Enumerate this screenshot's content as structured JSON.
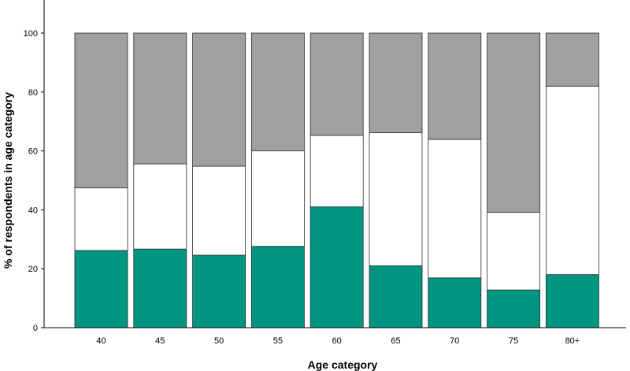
{
  "chart_data": {
    "type": "bar",
    "stacked": true,
    "xlabel": "Age category",
    "ylabel": "% of respondents in age category",
    "ylim": [
      0,
      100
    ],
    "yticks": [
      0,
      20,
      40,
      60,
      80,
      100
    ],
    "grid": false,
    "legend": "none",
    "categories": [
      "40",
      "45",
      "50",
      "55",
      "60",
      "65",
      "70",
      "75",
      "80+"
    ],
    "series": [
      {
        "color": "#009580",
        "values": [
          26.2,
          26.7,
          24.6,
          27.6,
          41.0,
          21.0,
          16.9,
          12.8,
          18.0
        ]
      },
      {
        "color": "#ffffff",
        "values": [
          21.3,
          28.9,
          30.2,
          32.4,
          24.3,
          45.2,
          47.0,
          26.4,
          64.0
        ]
      },
      {
        "color": "#a0a0a0",
        "values": [
          52.5,
          44.4,
          45.2,
          40.0,
          34.7,
          33.8,
          36.1,
          60.8,
          18.0
        ]
      }
    ]
  }
}
